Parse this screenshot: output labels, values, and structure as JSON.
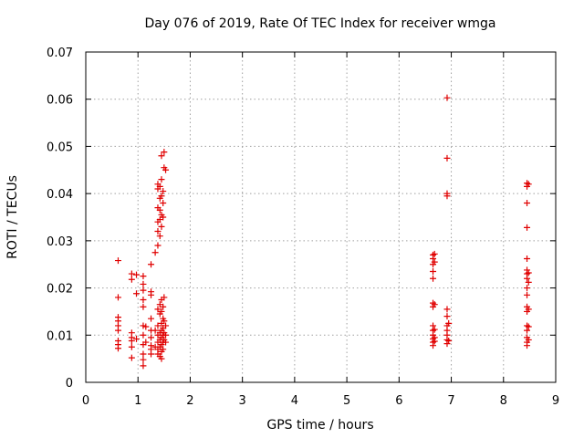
{
  "chart_data": {
    "type": "scatter",
    "title": "Day 076 of 2019, Rate Of TEC Index for receiver wmga",
    "xlabel": "GPS time / hours",
    "ylabel": "ROTI / TECUs",
    "xlim": [
      0,
      9
    ],
    "ylim": [
      0,
      0.07
    ],
    "x_ticks": [
      0,
      1,
      2,
      3,
      4,
      5,
      6,
      7,
      8,
      9
    ],
    "x_tick_labels": [
      "0",
      "1",
      "2",
      "3",
      "4",
      "5",
      "6",
      "7",
      "8",
      "9"
    ],
    "y_ticks": [
      0,
      0.01,
      0.02,
      0.03,
      0.04,
      0.05,
      0.06,
      0.07
    ],
    "y_tick_labels": [
      "0",
      "0.01",
      "0.02",
      "0.03",
      "0.04",
      "0.05",
      "0.06",
      "0.07"
    ],
    "grid": true,
    "marker": "+",
    "color": "#e00000",
    "series": [
      {
        "name": "ROTI",
        "points": [
          [
            0.62,
            0.0258
          ],
          [
            0.62,
            0.018
          ],
          [
            0.62,
            0.0138
          ],
          [
            0.62,
            0.013
          ],
          [
            0.62,
            0.012
          ],
          [
            0.62,
            0.011
          ],
          [
            0.62,
            0.0088
          ],
          [
            0.62,
            0.008
          ],
          [
            0.62,
            0.0072
          ],
          [
            0.88,
            0.023
          ],
          [
            0.88,
            0.0218
          ],
          [
            0.88,
            0.0105
          ],
          [
            0.88,
            0.0095
          ],
          [
            0.88,
            0.0088
          ],
          [
            0.88,
            0.0075
          ],
          [
            0.88,
            0.0052
          ],
          [
            0.97,
            0.0228
          ],
          [
            0.97,
            0.0188
          ],
          [
            0.97,
            0.0092
          ],
          [
            1.1,
            0.0225
          ],
          [
            1.1,
            0.0208
          ],
          [
            1.1,
            0.0195
          ],
          [
            1.1,
            0.0175
          ],
          [
            1.1,
            0.016
          ],
          [
            1.1,
            0.012
          ],
          [
            1.1,
            0.01
          ],
          [
            1.1,
            0.008
          ],
          [
            1.1,
            0.006
          ],
          [
            1.1,
            0.0048
          ],
          [
            1.1,
            0.0035
          ],
          [
            1.15,
            0.0118
          ],
          [
            1.15,
            0.0085
          ],
          [
            1.25,
            0.025
          ],
          [
            1.25,
            0.0192
          ],
          [
            1.25,
            0.0185
          ],
          [
            1.25,
            0.0135
          ],
          [
            1.25,
            0.011
          ],
          [
            1.25,
            0.0095
          ],
          [
            1.25,
            0.0078
          ],
          [
            1.25,
            0.007
          ],
          [
            1.25,
            0.006
          ],
          [
            1.33,
            0.0275
          ],
          [
            1.33,
            0.011
          ],
          [
            1.33,
            0.0075
          ],
          [
            1.38,
            0.042
          ],
          [
            1.38,
            0.041
          ],
          [
            1.38,
            0.037
          ],
          [
            1.38,
            0.034
          ],
          [
            1.38,
            0.032
          ],
          [
            1.38,
            0.029
          ],
          [
            1.38,
            0.0155
          ],
          [
            1.38,
            0.012
          ],
          [
            1.38,
            0.01
          ],
          [
            1.38,
            0.0085
          ],
          [
            1.38,
            0.007
          ],
          [
            1.38,
            0.006
          ],
          [
            1.42,
            0.0415
          ],
          [
            1.42,
            0.039
          ],
          [
            1.42,
            0.0365
          ],
          [
            1.42,
            0.0345
          ],
          [
            1.42,
            0.031
          ],
          [
            1.42,
            0.0165
          ],
          [
            1.42,
            0.0145
          ],
          [
            1.42,
            0.0105
          ],
          [
            1.42,
            0.009
          ],
          [
            1.42,
            0.0075
          ],
          [
            1.42,
            0.0055
          ],
          [
            1.45,
            0.048
          ],
          [
            1.45,
            0.043
          ],
          [
            1.45,
            0.0395
          ],
          [
            1.45,
            0.0355
          ],
          [
            1.45,
            0.033
          ],
          [
            1.45,
            0.0175
          ],
          [
            1.45,
            0.015
          ],
          [
            1.45,
            0.0125
          ],
          [
            1.45,
            0.011
          ],
          [
            1.45,
            0.0095
          ],
          [
            1.45,
            0.008
          ],
          [
            1.45,
            0.0065
          ],
          [
            1.45,
            0.005
          ],
          [
            1.48,
            0.0405
          ],
          [
            1.48,
            0.038
          ],
          [
            1.48,
            0.035
          ],
          [
            1.48,
            0.016
          ],
          [
            1.48,
            0.0135
          ],
          [
            1.48,
            0.0115
          ],
          [
            1.48,
            0.01
          ],
          [
            1.48,
            0.0085
          ],
          [
            1.48,
            0.007
          ],
          [
            1.5,
            0.0488
          ],
          [
            1.5,
            0.0455
          ],
          [
            1.5,
            0.018
          ],
          [
            1.5,
            0.013
          ],
          [
            1.5,
            0.0105
          ],
          [
            1.5,
            0.009
          ],
          [
            1.53,
            0.045
          ],
          [
            1.53,
            0.012
          ],
          [
            1.53,
            0.01
          ],
          [
            1.53,
            0.0085
          ],
          [
            6.65,
            0.027
          ],
          [
            6.65,
            0.0262
          ],
          [
            6.65,
            0.025
          ],
          [
            6.65,
            0.0235
          ],
          [
            6.65,
            0.022
          ],
          [
            6.65,
            0.0168
          ],
          [
            6.65,
            0.016
          ],
          [
            6.65,
            0.012
          ],
          [
            6.65,
            0.011
          ],
          [
            6.65,
            0.01
          ],
          [
            6.65,
            0.0092
          ],
          [
            6.65,
            0.0085
          ],
          [
            6.65,
            0.0078
          ],
          [
            6.68,
            0.0272
          ],
          [
            6.68,
            0.0255
          ],
          [
            6.68,
            0.0165
          ],
          [
            6.68,
            0.0112
          ],
          [
            6.68,
            0.0095
          ],
          [
            6.68,
            0.0087
          ],
          [
            6.92,
            0.0603
          ],
          [
            6.92,
            0.0475
          ],
          [
            6.92,
            0.04
          ],
          [
            6.92,
            0.0395
          ],
          [
            6.92,
            0.0155
          ],
          [
            6.92,
            0.014
          ],
          [
            6.92,
            0.012
          ],
          [
            6.92,
            0.011
          ],
          [
            6.92,
            0.01
          ],
          [
            6.92,
            0.009
          ],
          [
            6.92,
            0.0082
          ],
          [
            6.95,
            0.0125
          ],
          [
            6.95,
            0.0088
          ],
          [
            8.45,
            0.0422
          ],
          [
            8.45,
            0.0415
          ],
          [
            8.45,
            0.038
          ],
          [
            8.45,
            0.0328
          ],
          [
            8.45,
            0.0262
          ],
          [
            8.45,
            0.0238
          ],
          [
            8.45,
            0.023
          ],
          [
            8.45,
            0.022
          ],
          [
            8.45,
            0.02
          ],
          [
            8.45,
            0.0185
          ],
          [
            8.45,
            0.016
          ],
          [
            8.45,
            0.015
          ],
          [
            8.45,
            0.012
          ],
          [
            8.45,
            0.011
          ],
          [
            8.45,
            0.0095
          ],
          [
            8.45,
            0.0085
          ],
          [
            8.45,
            0.0078
          ],
          [
            8.48,
            0.042
          ],
          [
            8.48,
            0.0232
          ],
          [
            8.48,
            0.0212
          ],
          [
            8.48,
            0.0155
          ],
          [
            8.48,
            0.0118
          ],
          [
            8.48,
            0.009
          ]
        ]
      }
    ]
  }
}
